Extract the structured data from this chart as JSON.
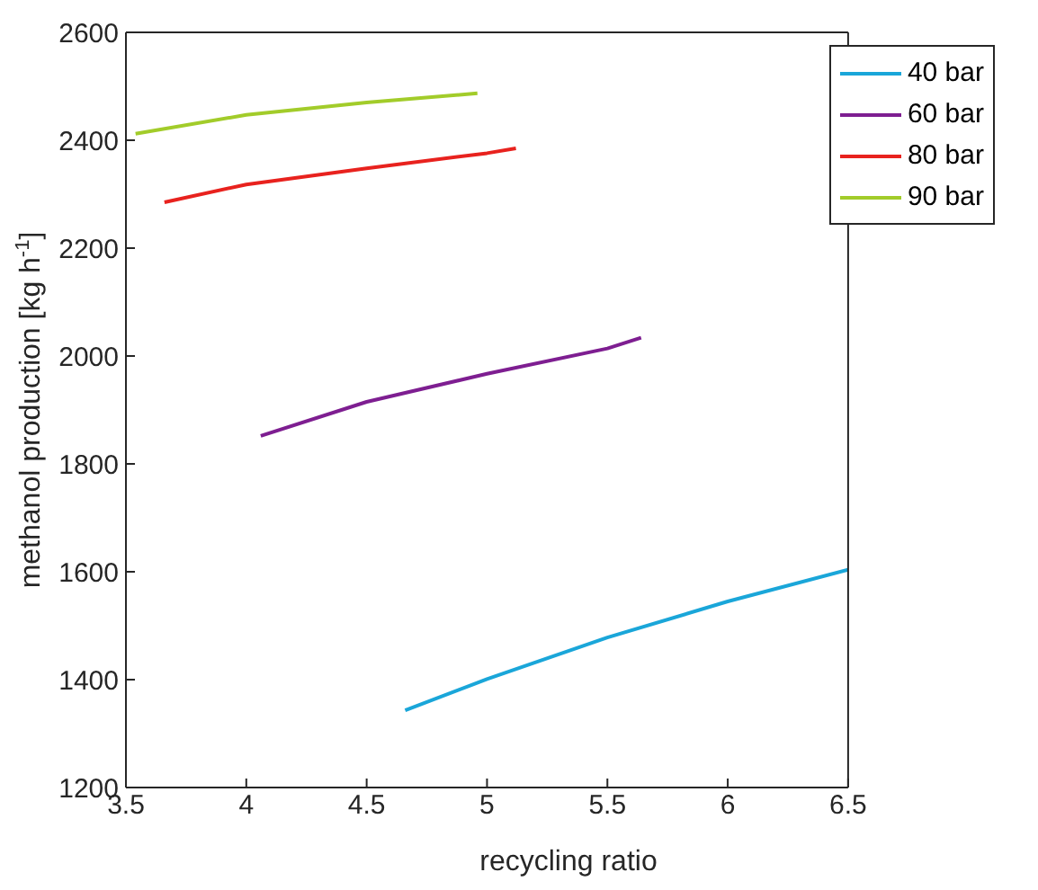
{
  "chart_data": {
    "type": "line",
    "xlabel": "recycling ratio",
    "ylabel": "methanol production [kg h$^{-1}$]",
    "xlim": [
      3.5,
      6.5
    ],
    "xticks": [
      3.5,
      4,
      4.5,
      5,
      5.5,
      6,
      6.5
    ],
    "ylim": [
      1200,
      2600
    ],
    "yticks": [
      1200,
      1400,
      1600,
      1800,
      2000,
      2200,
      2400,
      2600
    ],
    "grid": false,
    "legend": "top right",
    "marker": "none",
    "line_style": "solid",
    "series": [
      {
        "name": "40 bar",
        "color": "#1aa6d9",
        "x": [
          4.66,
          5,
          5.5,
          6,
          6.5
        ],
        "values": [
          1343,
          1401,
          1478,
          1545,
          1604
        ]
      },
      {
        "name": "60 bar",
        "color": "#7e1e91",
        "x": [
          4.06,
          4.5,
          5,
          5.5,
          5.64
        ],
        "values": [
          1852,
          1915,
          1967,
          2014,
          2034
        ]
      },
      {
        "name": "80 bar",
        "color": "#e8221e",
        "x": [
          3.66,
          4,
          4.5,
          5,
          5.12
        ],
        "values": [
          2285,
          2318,
          2348,
          2376,
          2385
        ]
      },
      {
        "name": "90 bar",
        "color": "#a2cc2a",
        "x": [
          3.54,
          4,
          4.5,
          4.96
        ],
        "values": [
          2412,
          2447,
          2470,
          2487
        ]
      }
    ]
  }
}
